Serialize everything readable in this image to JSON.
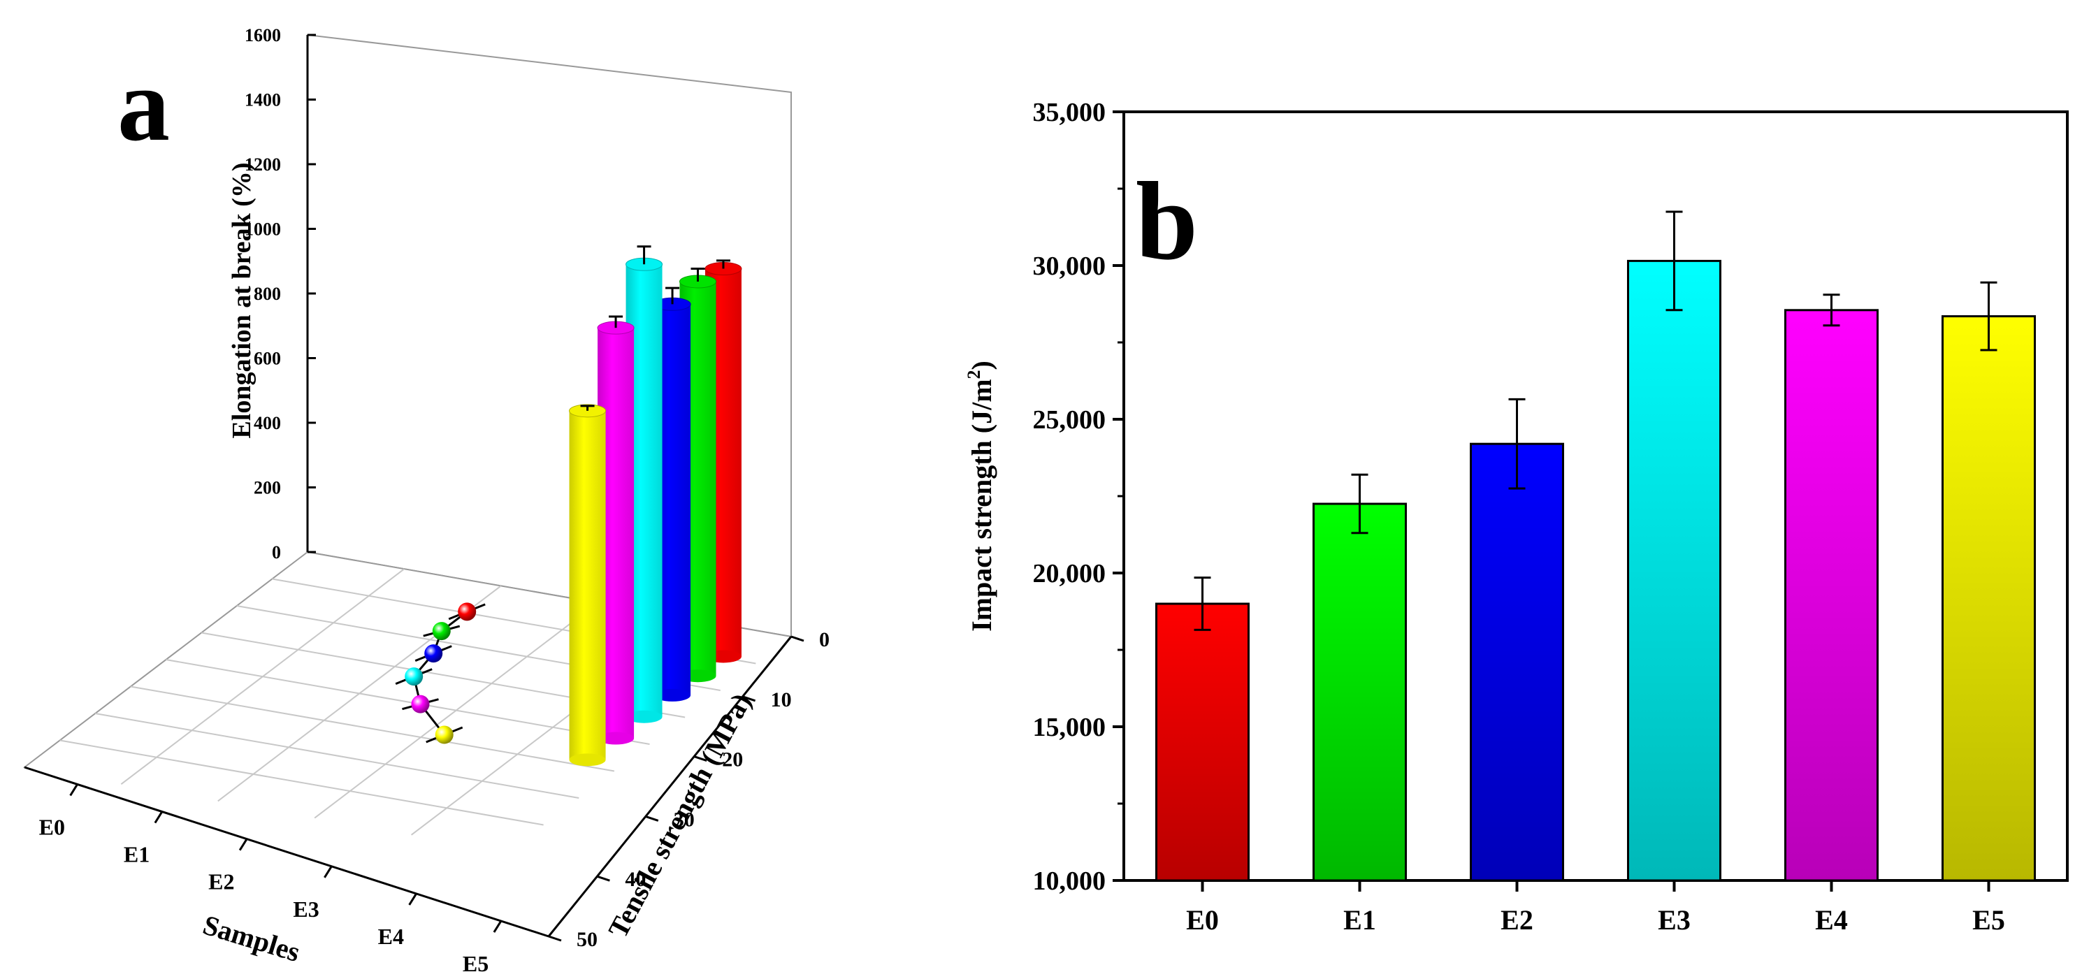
{
  "chart_data": [
    {
      "type": "bar",
      "panel_label": "a",
      "projection": "3d",
      "categories": [
        "E0",
        "E1",
        "E2",
        "E3",
        "E4",
        "E5"
      ],
      "colors": [
        "#ff0000",
        "#00ee00",
        "#0000ff",
        "#00ffff",
        "#ff00ff",
        "#ffff00"
      ],
      "bar_series": {
        "name": "Elongation at break",
        "values": [
          1200,
          1220,
          1210,
          1400,
          1270,
          1080
        ],
        "errors": [
          25,
          40,
          50,
          55,
          35,
          15
        ]
      },
      "line_series": {
        "name": "Tensile strength",
        "values": [
          10,
          10,
          12,
          13,
          17,
          23
        ],
        "errors": [
          1.5,
          1,
          1.5,
          1.5,
          1,
          1.5
        ]
      },
      "zlabel": "Elongation at break (%)",
      "zlim": [
        0,
        1600
      ],
      "zticks": [
        "0",
        "200",
        "400",
        "600",
        "800",
        "1000",
        "1200",
        "1400",
        "1600"
      ],
      "xlabel": "Samples",
      "ylabel": "Tensile strength (MPa)",
      "ylim": [
        0,
        50
      ],
      "yticks": [
        "0",
        "10",
        "20",
        "30",
        "40",
        "50"
      ]
    },
    {
      "type": "bar",
      "panel_label": "b",
      "categories": [
        "E0",
        "E1",
        "E2",
        "E3",
        "E4",
        "E5"
      ],
      "colors": [
        "#ff0000",
        "#00ff00",
        "#0000ff",
        "#00ffff",
        "#ff00ff",
        "#ffff00"
      ],
      "values": [
        19000,
        22250,
        24200,
        30150,
        28550,
        28350
      ],
      "errors": [
        850,
        950,
        1450,
        1600,
        500,
        1100
      ],
      "ylabel": "Impact strength (J/m",
      "ylabel_sup": "2",
      "ylabel_close": ")",
      "ylim": [
        10000,
        35000
      ],
      "yticks": [
        "10,000",
        "15,000",
        "20,000",
        "25,000",
        "30,000",
        "35,000"
      ]
    }
  ]
}
